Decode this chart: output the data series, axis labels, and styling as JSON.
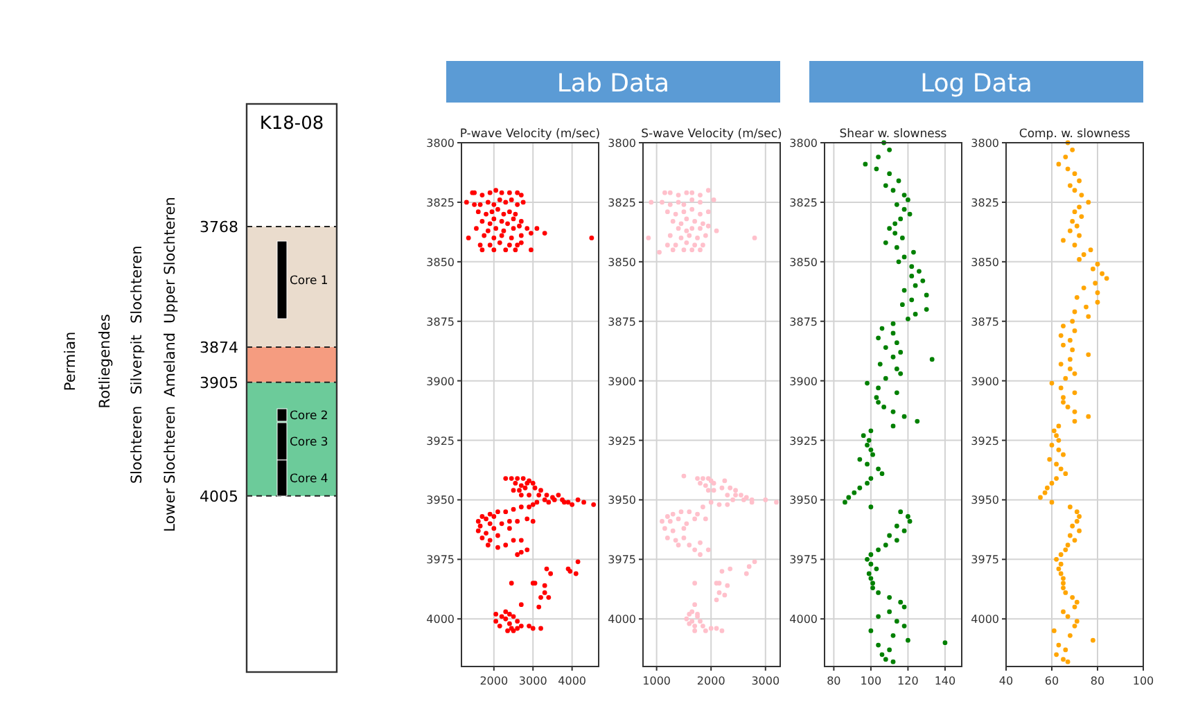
{
  "chart_data": [
    {
      "type": "bar",
      "title": "K18-08",
      "categories": [
        null
      ],
      "grid": "y",
      "ylim": [
        4160,
        3660
      ],
      "yticks": [
        3768,
        3874,
        3905,
        4005
      ],
      "series": [
        {
          "color": "#eadccd",
          "base": [
            3768
          ],
          "values": [
            106
          ]
        },
        {
          "color": "#f59c80",
          "base": [
            3874
          ],
          "values": [
            31
          ]
        },
        {
          "color": "#6ccb9a",
          "base": [
            3905
          ],
          "values": [
            100
          ]
        }
      ],
      "annotations": [
        "Permian",
        "Rotliegendes",
        "Slochteren",
        "Silverpit",
        "Slochteren",
        "Upper Slochteren",
        "Ameland",
        "Lower Slochteren",
        "Core 1",
        "Core 2",
        "Core 3",
        "Core 4"
      ]
    },
    {
      "type": "scatter",
      "title": "P-wave Velocity (m/sec)",
      "subtitle": "Lab Data",
      "color": "#ff0000",
      "marker": "circle",
      "grid": true,
      "xlim": [
        1170,
        4680
      ],
      "xticks": [
        2000,
        3000,
        4000
      ],
      "ylim": [
        4020,
        3800
      ],
      "yticks": [
        3800,
        3825,
        3850,
        3875,
        3900,
        3925,
        3950,
        3975,
        4000
      ],
      "x": [
        1450,
        1500,
        1700,
        1900,
        2050,
        2200,
        2400,
        2600,
        2700,
        1300,
        1500,
        1650,
        1850,
        2000,
        2150,
        2300,
        2450,
        2600,
        2750,
        1600,
        1800,
        1950,
        2100,
        2250,
        2400,
        2550,
        1700,
        1900,
        2000,
        2200,
        2350,
        2500,
        2700,
        1550,
        1850,
        2050,
        2250,
        2500,
        2650,
        2850,
        3100,
        3300,
        1750,
        2000,
        2200,
        2450,
        2700,
        2950,
        1350,
        4500,
        1650,
        1900,
        2150,
        2400,
        2600,
        2700,
        1700,
        2000,
        2300,
        2550,
        2950,
        2300,
        2450,
        2600,
        2750,
        2900,
        2550,
        2700,
        2850,
        3000,
        2500,
        2650,
        2800,
        3050,
        3200,
        2700,
        2900,
        3150,
        3350,
        3500,
        3650,
        3300,
        3550,
        3750,
        3900,
        4150,
        4300,
        4550,
        3100,
        3400,
        3800,
        4000,
        2500,
        2700,
        2900,
        3000,
        2300,
        2100,
        1900,
        1700,
        1600,
        1800,
        2000,
        1650,
        1900,
        2200,
        2400,
        2600,
        2850,
        3000,
        1600,
        1800,
        2000,
        2400,
        1700,
        1900,
        2100,
        1850,
        2100,
        2300,
        2500,
        2700,
        2700,
        2850,
        2600,
        4150,
        3350,
        3900,
        4100,
        3450,
        3950,
        2450,
        3000,
        3050,
        3300,
        3300,
        3200,
        3400,
        2700,
        3150,
        2050,
        2300,
        2400,
        2200,
        2500,
        2050,
        2300,
        2600,
        2400,
        2700,
        2900,
        2150,
        2450,
        3000,
        3200,
        2500,
        2600,
        2350
      ],
      "values": [
        3821,
        3821,
        3822,
        3821,
        3820,
        3821,
        3821,
        3821,
        3822,
        3825,
        3826,
        3826,
        3825,
        3826,
        3824,
        3825,
        3824,
        3826,
        3825,
        3829,
        3830,
        3829,
        3828,
        3830,
        3829,
        3830,
        3833,
        3834,
        3832,
        3833,
        3834,
        3832,
        3833,
        3836,
        3837,
        3836,
        3837,
        3836,
        3835,
        3836,
        3836,
        3838,
        3839,
        3840,
        3839,
        3840,
        3839,
        3838,
        3840,
        3840,
        3843,
        3843,
        3842,
        3843,
        3843,
        3842,
        3845,
        3845,
        3845,
        3845,
        3845,
        3941,
        3941,
        3941,
        3941,
        3942,
        3943,
        3944,
        3943,
        3943,
        3946,
        3946,
        3945,
        3945,
        3946,
        3948,
        3948,
        3948,
        3948,
        3949,
        3948,
        3950,
        3950,
        3950,
        3951,
        3950,
        3951,
        3952,
        3951,
        3951,
        3951,
        3952,
        3954,
        3953,
        3953,
        3952,
        3955,
        3955,
        3956,
        3957,
        3959,
        3958,
        3957,
        3961,
        3960,
        3960,
        3959,
        3959,
        3958,
        3959,
        3963,
        3964,
        3962,
        3962,
        3966,
        3967,
        3965,
        3969,
        3970,
        3969,
        3967,
        3967,
        3972,
        3971,
        3973,
        3976,
        3979,
        3979,
        3981,
        3981,
        3980,
        3985,
        3985,
        3985,
        3986,
        3989,
        3991,
        3991,
        3994,
        3995,
        3998,
        3997,
        3998,
        3999,
        3999,
        4001,
        4000,
        4001,
        4002,
        4003,
        4003,
        4003,
        4004,
        4004,
        4004,
        4005,
        4004,
        4005
      ]
    },
    {
      "type": "scatter",
      "title": "S-wave Velocity (m/sec)",
      "color": "#ffc0cb",
      "marker": "circle",
      "grid": true,
      "xlim": [
        750,
        3270
      ],
      "xticks": [
        1000,
        2000,
        3000
      ],
      "ylim": [
        4020,
        3800
      ],
      "yticks": [
        3800,
        3825,
        3850,
        3875,
        3900,
        3925,
        3950,
        3975,
        4000
      ],
      "x": [
        1150,
        1250,
        1400,
        1550,
        1650,
        1800,
        1950,
        900,
        1100,
        1250,
        1400,
        1500,
        1650,
        1800,
        2050,
        1200,
        1350,
        1500,
        1650,
        1800,
        1950,
        1300,
        1450,
        1550,
        1700,
        1850,
        1400,
        1550,
        1650,
        1800,
        1950,
        2100,
        1250,
        1450,
        1600,
        1750,
        1900,
        850,
        2800,
        1200,
        1350,
        1550,
        1700,
        1850,
        1050,
        1300,
        1500,
        1650,
        1800,
        1500,
        1750,
        1850,
        1950,
        2000,
        1800,
        1900,
        2050,
        2250,
        1950,
        2050,
        2200,
        2350,
        2450,
        2300,
        2450,
        2550,
        2650,
        2400,
        2600,
        2750,
        3000,
        3200,
        2750,
        2000,
        2150,
        2300,
        1850,
        1750,
        1600,
        1450,
        1300,
        1200,
        1100,
        1250,
        1400,
        1550,
        1700,
        1900,
        1150,
        1300,
        1500,
        1200,
        1350,
        1500,
        1400,
        1600,
        1800,
        1700,
        1950,
        1800,
        2800,
        2700,
        2350,
        2200,
        2650,
        1700,
        2100,
        2150,
        2300,
        2150,
        2250,
        2100,
        1700,
        1650,
        1600,
        1750,
        1550,
        1650,
        1800,
        1600,
        1700,
        1850,
        2000,
        2100,
        2200,
        1700,
        1900,
        1750
      ],
      "values": [
        3821,
        3821,
        3822,
        3821,
        3821,
        3822,
        3820,
        3825,
        3825,
        3826,
        3825,
        3826,
        3824,
        3825,
        3824,
        3829,
        3830,
        3829,
        3828,
        3830,
        3829,
        3833,
        3834,
        3832,
        3833,
        3834,
        3836,
        3837,
        3836,
        3836,
        3835,
        3837,
        3839,
        3840,
        3839,
        3840,
        3839,
        3840,
        3840,
        3843,
        3843,
        3842,
        3843,
        3843,
        3846,
        3845,
        3845,
        3845,
        3845,
        3940,
        3941,
        3941,
        3941,
        3942,
        3943,
        3944,
        3943,
        3942,
        3946,
        3946,
        3945,
        3945,
        3946,
        3948,
        3948,
        3948,
        3949,
        3950,
        3950,
        3950,
        3950,
        3951,
        3951,
        3951,
        3952,
        3952,
        3953,
        3956,
        3955,
        3955,
        3956,
        3957,
        3959,
        3959,
        3958,
        3960,
        3958,
        3958,
        3962,
        3963,
        3962,
        3966,
        3967,
        3966,
        3969,
        3969,
        3968,
        3971,
        3971,
        3973,
        3976,
        3978,
        3979,
        3980,
        3981,
        3985,
        3985,
        3985,
        3986,
        3989,
        3990,
        3992,
        3994,
        3997,
        3998,
        3999,
        4000,
        4001,
        4001,
        4002,
        4003,
        4003,
        4004,
        4004,
        4005,
        4005,
        4005,
        3998
      ]
    },
    {
      "type": "scatter",
      "title": "Shear w. slowness",
      "subtitle": "Log Data",
      "color": "#008000",
      "marker": "circle",
      "grid": true,
      "xlim": [
        75,
        149
      ],
      "xticks": [
        80,
        100,
        120,
        140
      ],
      "ylim": [
        4020,
        3800
      ],
      "yticks": [
        3800,
        3825,
        3850,
        3875,
        3900,
        3925,
        3950,
        3975,
        4000
      ],
      "x": [
        107,
        110,
        104,
        97,
        103,
        110,
        115,
        108,
        112,
        118,
        120,
        114,
        118,
        121,
        116,
        113,
        110,
        113,
        117,
        108,
        114,
        123,
        118,
        115,
        122,
        126,
        122,
        128,
        124,
        118,
        130,
        122,
        117,
        130,
        124,
        120,
        112,
        106,
        112,
        104,
        114,
        108,
        116,
        112,
        133,
        105,
        114,
        116,
        108,
        98,
        104,
        114,
        103,
        104,
        107,
        112,
        118,
        125,
        112,
        100,
        96,
        99,
        98,
        100,
        101,
        94,
        98,
        104,
        106,
        100,
        98,
        94,
        91,
        88,
        86,
        100,
        116,
        120,
        121,
        114,
        118,
        110,
        114,
        108,
        104,
        100,
        98,
        100,
        103,
        99,
        100,
        101,
        101,
        104,
        110,
        116,
        118,
        110,
        104,
        114,
        118,
        100,
        112,
        120,
        140,
        104,
        110,
        106,
        108,
        112
      ],
      "values": [
        3800,
        3803,
        3806,
        3809,
        3811,
        3813,
        3816,
        3818,
        3820,
        3822,
        3824,
        3826,
        3828,
        3830,
        3832,
        3834,
        3836,
        3838,
        3840,
        3842,
        3844,
        3846,
        3848,
        3850,
        3852,
        3854,
        3856,
        3858,
        3860,
        3862,
        3864,
        3866,
        3868,
        3870,
        3872,
        3874,
        3876,
        3878,
        3880,
        3882,
        3884,
        3886,
        3888,
        3890,
        3891,
        3893,
        3895,
        3897,
        3899,
        3901,
        3903,
        3905,
        3907,
        3909,
        3911,
        3913,
        3915,
        3917,
        3919,
        3921,
        3923,
        3925,
        3927,
        3929,
        3931,
        3933,
        3935,
        3937,
        3939,
        3941,
        3943,
        3945,
        3947,
        3949,
        3951,
        3953,
        3955,
        3957,
        3959,
        3961,
        3963,
        3965,
        3967,
        3969,
        3971,
        3973,
        3975,
        3977,
        3979,
        3981,
        3983,
        3985,
        3987,
        3989,
        3991,
        3993,
        3995,
        3997,
        3999,
        4001,
        4003,
        4005,
        4007,
        4009,
        4010,
        4011,
        4013,
        4015,
        4017,
        4018
      ]
    },
    {
      "type": "scatter",
      "title": "Comp. w. slowness",
      "color": "#ffa500",
      "marker": "circle",
      "grid": true,
      "xlim": [
        40,
        100
      ],
      "xticks": [
        40,
        60,
        80,
        100
      ],
      "ylim": [
        4020,
        3800
      ],
      "yticks": [
        3800,
        3825,
        3850,
        3875,
        3900,
        3925,
        3950,
        3975,
        4000
      ],
      "x": [
        67,
        69,
        66,
        63,
        67,
        70,
        72,
        68,
        70,
        73,
        76,
        72,
        70,
        73,
        69,
        71,
        68,
        72,
        65,
        70,
        77,
        74,
        72,
        80,
        78,
        82,
        84,
        79,
        74,
        80,
        71,
        80,
        75,
        70,
        76,
        69,
        65,
        70,
        64,
        68,
        65,
        69,
        76,
        68,
        64,
        68,
        70,
        66,
        60,
        64,
        70,
        65,
        65,
        67,
        70,
        76,
        70,
        63,
        61,
        62,
        63,
        60,
        63,
        65,
        59,
        62,
        64,
        66,
        62,
        60,
        58,
        57,
        55,
        60,
        68,
        71,
        72,
        71,
        69,
        72,
        68,
        70,
        67,
        66,
        64,
        62,
        64,
        63,
        64,
        65,
        65,
        65,
        66,
        69,
        71,
        70,
        65,
        67,
        71,
        70,
        61,
        68,
        78,
        63,
        66,
        62,
        65,
        67
      ],
      "values": [
        3800,
        3803,
        3806,
        3809,
        3811,
        3813,
        3816,
        3818,
        3820,
        3822,
        3825,
        3827,
        3829,
        3831,
        3833,
        3835,
        3837,
        3839,
        3841,
        3843,
        3845,
        3847,
        3849,
        3851,
        3853,
        3855,
        3857,
        3859,
        3861,
        3863,
        3865,
        3867,
        3869,
        3871,
        3873,
        3875,
        3877,
        3879,
        3881,
        3883,
        3885,
        3887,
        3889,
        3891,
        3893,
        3895,
        3897,
        3899,
        3901,
        3903,
        3905,
        3907,
        3909,
        3911,
        3913,
        3915,
        3917,
        3919,
        3921,
        3923,
        3925,
        3927,
        3929,
        3931,
        3933,
        3935,
        3937,
        3939,
        3941,
        3943,
        3945,
        3947,
        3949,
        3951,
        3953,
        3955,
        3957,
        3959,
        3961,
        3963,
        3965,
        3967,
        3969,
        3971,
        3973,
        3975,
        3977,
        3979,
        3981,
        3983,
        3985,
        3987,
        3989,
        3991,
        3993,
        3995,
        3997,
        3999,
        4001,
        4003,
        4005,
        4007,
        4009,
        4011,
        4013,
        4015,
        4017,
        4018
      ]
    }
  ]
}
